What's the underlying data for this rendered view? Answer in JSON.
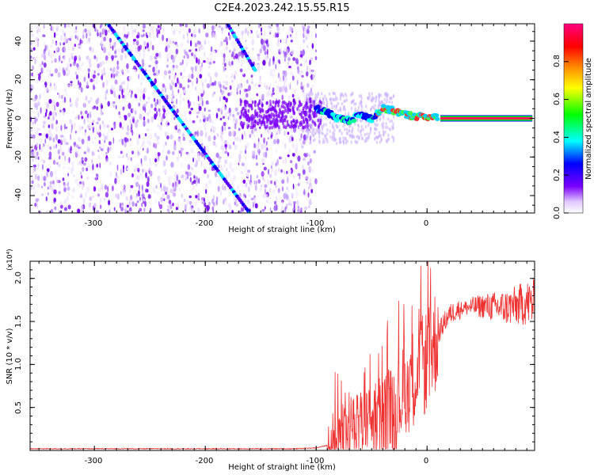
{
  "title": "C2E4.2023.242.15.55.R15",
  "chart_data": [
    {
      "type": "heatmap",
      "xlabel": "Height of straight line (km)",
      "ylabel": "Frequency (Hz)",
      "xlim": [
        -358,
        97
      ],
      "ylim": [
        -49,
        49
      ],
      "xticks": [
        -300,
        -200,
        -100,
        0
      ],
      "xtick_labels": [
        "-300",
        "-200",
        "-100",
        "0"
      ],
      "yticks": [
        40,
        20,
        0,
        -20,
        -40
      ],
      "ytick_labels": [
        "40",
        "20",
        "0",
        "-20",
        "-40"
      ],
      "colorbar": {
        "label": "Normalized spectral amplitude",
        "range": [
          0,
          1
        ],
        "ticks": [
          0.0,
          0.2,
          0.4,
          0.6,
          0.8
        ],
        "tick_labels": [
          "0.0",
          "0.2",
          "0.4",
          "0.6",
          "0.8"
        ],
        "colors": [
          "#ffffff",
          "#7b00ff",
          "#0000ff",
          "#00ffff",
          "#00ff00",
          "#ffff00",
          "#ff8000",
          "#ff0000",
          "#ff0080"
        ]
      },
      "features": {
        "noise_region_x": [
          -358,
          -100
        ],
        "diagonal_track_a": {
          "x": [
            -288,
            -160
          ],
          "y": [
            49,
            -49
          ]
        },
        "diagonal_track_b": {
          "x": [
            -180,
            -155
          ],
          "y": [
            49,
            25
          ]
        },
        "wobbly_line": [
          [
            -100,
            5
          ],
          [
            -90,
            3
          ],
          [
            -80,
            0
          ],
          [
            -70,
            -1
          ],
          [
            -60,
            2
          ],
          [
            -50,
            0
          ],
          [
            -40,
            5
          ],
          [
            -30,
            4
          ],
          [
            -20,
            2
          ],
          [
            -10,
            1
          ],
          [
            0,
            1
          ],
          [
            10,
            0
          ],
          [
            95,
            0
          ]
        ],
        "steady_line_x": [
          12,
          95
        ],
        "steady_line_y": 0
      }
    },
    {
      "type": "line",
      "xlabel": "Height of straight line (km)",
      "ylabel": "SNR (10 * v/v)",
      "multiplier": "(x10⁴)",
      "xlim": [
        -358,
        97
      ],
      "ylim": [
        0,
        2.2
      ],
      "xticks": [
        -300,
        -200,
        -100,
        0
      ],
      "xtick_labels": [
        "-300",
        "-200",
        "-100",
        "0"
      ],
      "yticks": [
        0.5,
        1.0,
        1.5,
        2.0
      ],
      "ytick_labels": [
        "0.5",
        "1.0",
        "1.5",
        "2.0"
      ],
      "series": [
        {
          "color": "#ee3333",
          "x": [
            -358,
            -300,
            -200,
            -120,
            -100,
            -90,
            -80,
            -70,
            -60,
            -50,
            -40,
            -30,
            -25,
            -20,
            -15,
            -10,
            -5,
            0,
            5,
            10,
            15,
            20,
            25,
            30,
            40,
            50,
            60,
            70,
            80,
            90,
            97
          ],
          "y": [
            0.02,
            0.02,
            0.02,
            0.02,
            0.03,
            0.06,
            0.12,
            0.2,
            0.25,
            0.3,
            0.4,
            0.5,
            0.6,
            0.7,
            0.8,
            0.9,
            0.95,
            1.05,
            1.2,
            1.35,
            1.48,
            1.58,
            1.62,
            1.65,
            1.67,
            1.68,
            1.67,
            1.66,
            1.68,
            1.72,
            1.7
          ]
        }
      ]
    }
  ]
}
